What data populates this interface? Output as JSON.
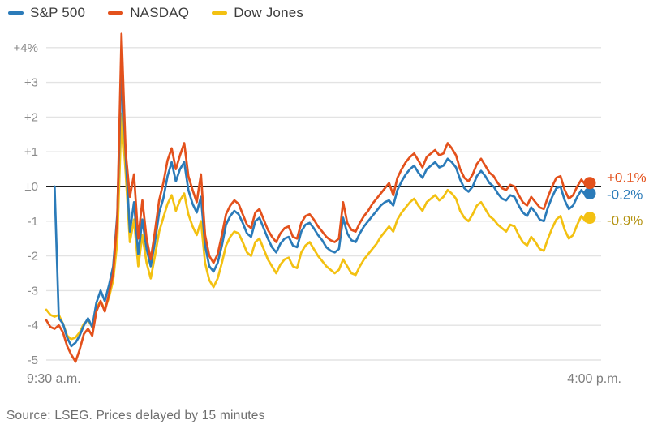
{
  "page": {
    "background": "#ffffff"
  },
  "legend": {
    "items": [
      {
        "label": "S&P 500",
        "color": "#2b7bb9"
      },
      {
        "label": "NASDAQ",
        "color": "#e3511c"
      },
      {
        "label": "Dow Jones",
        "color": "#f3c112"
      }
    ]
  },
  "footer": {
    "source": "Source: LSEG. Prices delayed by 15 minutes"
  },
  "chart_data": {
    "type": "line",
    "title": "",
    "xlabel": "",
    "ylabel": "",
    "grid": true,
    "legend_position": "top-left",
    "x_axis": {
      "start_label": "9:30 a.m.",
      "end_label": "4:00 p.m.",
      "range_minutes": [
        0,
        390
      ],
      "sample_interval_minutes": 3
    },
    "y_axis": {
      "unit": "%",
      "ylim": [
        -5,
        4.5
      ],
      "ticks": [
        {
          "value": 4,
          "label": "+4%"
        },
        {
          "value": 3,
          "label": "+3"
        },
        {
          "value": 2,
          "label": "+2"
        },
        {
          "value": 1,
          "label": "+1"
        },
        {
          "value": 0,
          "label": "±0"
        },
        {
          "value": -1,
          "label": "-1"
        },
        {
          "value": -2,
          "label": "-2"
        },
        {
          "value": -3,
          "label": "-3"
        },
        {
          "value": -4,
          "label": "-4"
        },
        {
          "value": -5,
          "label": "-5"
        }
      ]
    },
    "zero_line": true,
    "series": [
      {
        "name": "S&P 500",
        "color": "#2b7bb9",
        "end_value": -0.2,
        "end_label": "-0.2%",
        "end_label_color": "#2b7bb9",
        "values": [
          null,
          null,
          0,
          -3.8,
          -3.95,
          -4.35,
          -4.6,
          -4.5,
          -4.3,
          -4.0,
          -3.8,
          -4.05,
          -3.35,
          -3.0,
          -3.3,
          -2.85,
          -2.3,
          -0.8,
          3.45,
          0.9,
          -1.3,
          -0.45,
          -1.95,
          -0.95,
          -1.8,
          -2.3,
          -1.6,
          -0.75,
          -0.35,
          0.3,
          0.7,
          0.15,
          0.5,
          0.7,
          -0.1,
          -0.5,
          -0.75,
          -0.3,
          -1.7,
          -2.3,
          -2.45,
          -2.2,
          -1.7,
          -1.1,
          -0.85,
          -0.7,
          -0.8,
          -1.05,
          -1.35,
          -1.45,
          -1.0,
          -0.9,
          -1.2,
          -1.5,
          -1.75,
          -1.9,
          -1.65,
          -1.5,
          -1.45,
          -1.7,
          -1.75,
          -1.3,
          -1.1,
          -1.05,
          -1.2,
          -1.4,
          -1.55,
          -1.75,
          -1.85,
          -1.9,
          -1.8,
          -0.9,
          -1.35,
          -1.55,
          -1.6,
          -1.35,
          -1.15,
          -1.0,
          -0.85,
          -0.7,
          -0.55,
          -0.45,
          -0.4,
          -0.55,
          -0.1,
          0.15,
          0.35,
          0.5,
          0.6,
          0.4,
          0.25,
          0.5,
          0.6,
          0.7,
          0.55,
          0.6,
          0.8,
          0.7,
          0.55,
          0.2,
          -0.05,
          -0.15,
          0.0,
          0.3,
          0.45,
          0.3,
          0.1,
          0.0,
          -0.2,
          -0.35,
          -0.4,
          -0.25,
          -0.3,
          -0.55,
          -0.75,
          -0.85,
          -0.6,
          -0.75,
          -0.95,
          -1.0,
          -0.6,
          -0.3,
          -0.05,
          0.0,
          -0.4,
          -0.65,
          -0.55,
          -0.3,
          -0.1,
          -0.25,
          -0.2
        ]
      },
      {
        "name": "NASDAQ",
        "color": "#e3511c",
        "end_value": 0.1,
        "end_label": "+0.1%",
        "end_label_color": "#e3511c",
        "values": [
          -3.85,
          -4.05,
          -4.1,
          -4.0,
          -4.2,
          -4.6,
          -4.85,
          -5.05,
          -4.7,
          -4.25,
          -4.1,
          -4.3,
          -3.6,
          -3.3,
          -3.6,
          -3.1,
          -2.5,
          -0.9,
          4.4,
          1.0,
          -0.3,
          0.35,
          -1.5,
          -0.4,
          -1.5,
          -2.1,
          -1.3,
          -0.4,
          0.1,
          0.75,
          1.1,
          0.5,
          0.9,
          1.25,
          0.3,
          -0.1,
          -0.45,
          0.35,
          -1.4,
          -2.0,
          -2.2,
          -1.95,
          -1.4,
          -0.8,
          -0.55,
          -0.4,
          -0.5,
          -0.8,
          -1.1,
          -1.2,
          -0.75,
          -0.65,
          -0.95,
          -1.25,
          -1.45,
          -1.6,
          -1.35,
          -1.2,
          -1.15,
          -1.45,
          -1.5,
          -1.05,
          -0.85,
          -0.8,
          -0.95,
          -1.15,
          -1.3,
          -1.45,
          -1.55,
          -1.6,
          -1.5,
          -0.45,
          -1.05,
          -1.25,
          -1.3,
          -1.05,
          -0.85,
          -0.7,
          -0.5,
          -0.35,
          -0.2,
          -0.05,
          0.1,
          -0.25,
          0.25,
          0.5,
          0.7,
          0.85,
          0.95,
          0.75,
          0.55,
          0.85,
          0.95,
          1.05,
          0.9,
          0.95,
          1.25,
          1.1,
          0.9,
          0.5,
          0.25,
          0.15,
          0.35,
          0.65,
          0.8,
          0.6,
          0.4,
          0.3,
          0.1,
          -0.05,
          -0.1,
          0.05,
          0.0,
          -0.25,
          -0.45,
          -0.55,
          -0.3,
          -0.45,
          -0.6,
          -0.65,
          -0.3,
          0.0,
          0.25,
          0.3,
          -0.1,
          -0.35,
          -0.25,
          0.0,
          0.2,
          0.05,
          0.1
        ]
      },
      {
        "name": "Dow Jones",
        "color": "#f3c112",
        "end_value": -0.9,
        "end_label": "-0.9%",
        "end_label_color": "#b3920f",
        "values": [
          -3.55,
          -3.7,
          -3.75,
          -3.7,
          -3.95,
          -4.3,
          -4.4,
          -4.35,
          -4.2,
          -3.95,
          -3.85,
          -4.05,
          -3.5,
          -3.3,
          -3.55,
          -3.2,
          -2.7,
          -1.6,
          2.1,
          0.4,
          -1.6,
          -0.95,
          -2.3,
          -1.4,
          -2.2,
          -2.65,
          -2.0,
          -1.3,
          -0.9,
          -0.5,
          -0.25,
          -0.7,
          -0.4,
          -0.2,
          -0.8,
          -1.15,
          -1.4,
          -1.0,
          -2.2,
          -2.7,
          -2.9,
          -2.65,
          -2.2,
          -1.7,
          -1.45,
          -1.3,
          -1.35,
          -1.6,
          -1.9,
          -2.0,
          -1.6,
          -1.5,
          -1.8,
          -2.1,
          -2.3,
          -2.5,
          -2.25,
          -2.1,
          -2.05,
          -2.3,
          -2.35,
          -1.9,
          -1.7,
          -1.6,
          -1.8,
          -2.0,
          -2.15,
          -2.3,
          -2.4,
          -2.5,
          -2.4,
          -2.1,
          -2.3,
          -2.5,
          -2.55,
          -2.3,
          -2.1,
          -1.95,
          -1.8,
          -1.65,
          -1.45,
          -1.3,
          -1.15,
          -1.3,
          -0.95,
          -0.75,
          -0.6,
          -0.45,
          -0.35,
          -0.55,
          -0.7,
          -0.45,
          -0.35,
          -0.25,
          -0.4,
          -0.3,
          -0.1,
          -0.2,
          -0.35,
          -0.7,
          -0.9,
          -1.0,
          -0.8,
          -0.55,
          -0.45,
          -0.65,
          -0.85,
          -0.95,
          -1.1,
          -1.2,
          -1.3,
          -1.1,
          -1.15,
          -1.4,
          -1.6,
          -1.7,
          -1.45,
          -1.6,
          -1.8,
          -1.85,
          -1.5,
          -1.2,
          -0.95,
          -0.85,
          -1.25,
          -1.5,
          -1.4,
          -1.1,
          -0.85,
          -1.0,
          -0.9
        ]
      }
    ]
  }
}
